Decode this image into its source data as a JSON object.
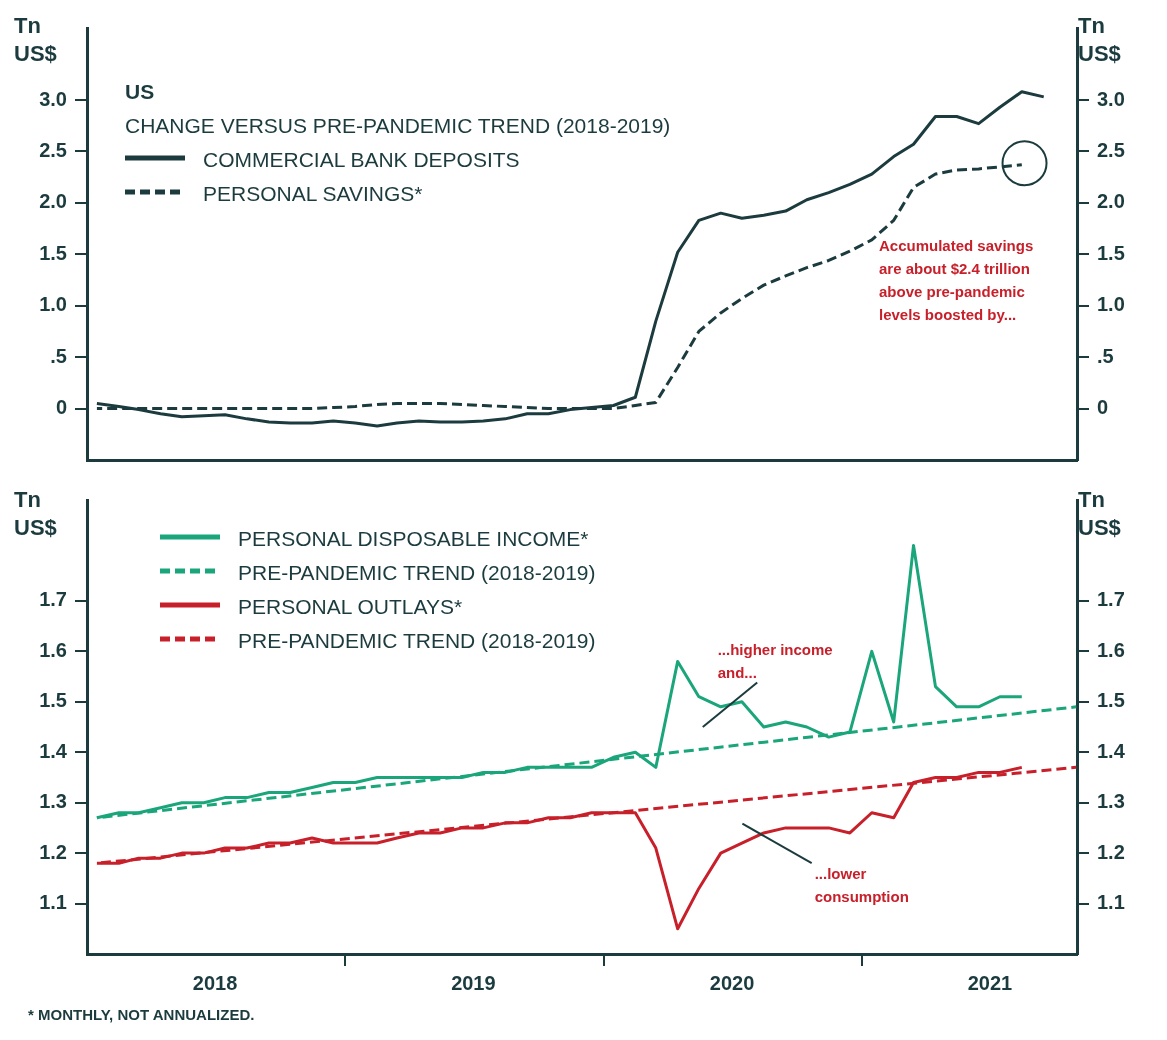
{
  "chart_data": [
    {
      "type": "line",
      "title": "US",
      "subtitle": "CHANGE VERSUS PRE-PANDEMIC TREND (2018-2019)",
      "ylabel": "Tn US$",
      "y2label": "Tn US$",
      "xlim": [
        "2018-01-01",
        "2021-11-01"
      ],
      "ylim": [
        -0.5,
        3.7
      ],
      "yticks": [
        0,
        {
          "value": 0.5,
          "label": ".5"
        },
        {
          "value": 1,
          "label": "1.0"
        },
        1.5,
        {
          "value": 2,
          "label": "2.0"
        },
        2.5,
        {
          "value": 3,
          "label": "3.0"
        }
      ],
      "y2lim": [
        -0.5,
        3.7
      ],
      "y2ticks": [
        0,
        {
          "value": 0.5,
          "label": ".5"
        },
        {
          "value": 1,
          "label": "1.0"
        },
        1.5,
        {
          "value": 2,
          "label": "2.0"
        },
        2.5,
        {
          "value": 3,
          "label": "3.0"
        }
      ],
      "tick_labels": "y",
      "grid": false,
      "legend": "top left",
      "marker": "none",
      "annotations": [
        "Accumulated savings are about $2.4 trillion above pre-pandemic levels boosted by..."
      ],
      "x": [
        "2018-01-15",
        "2018-02-15",
        "2018-03-15",
        "2018-04-15",
        "2018-05-15",
        "2018-06-15",
        "2018-07-15",
        "2018-08-15",
        "2018-09-15",
        "2018-10-15",
        "2018-11-15",
        "2018-12-15",
        "2019-01-15",
        "2019-02-15",
        "2019-03-15",
        "2019-04-15",
        "2019-05-15",
        "2019-06-15",
        "2019-07-15",
        "2019-08-15",
        "2019-09-15",
        "2019-10-15",
        "2019-11-15",
        "2019-12-15",
        "2020-01-15",
        "2020-02-15",
        "2020-03-15",
        "2020-04-15",
        "2020-05-15",
        "2020-06-15",
        "2020-07-15",
        "2020-08-15",
        "2020-09-15",
        "2020-10-15",
        "2020-11-15",
        "2020-12-15",
        "2021-01-15",
        "2021-02-15",
        "2021-03-15",
        "2021-04-15",
        "2021-05-15",
        "2021-06-15",
        "2021-07-15",
        "2021-08-15",
        "2021-09-15"
      ],
      "series": [
        {
          "name": "COMMERCIAL BANK DEPOSITS",
          "type": "line",
          "line_style": "solid",
          "color": "#1c3b3f",
          "values": [
            0.05,
            0.02,
            -0.01,
            -0.05,
            -0.08,
            -0.07,
            -0.06,
            -0.1,
            -0.13,
            -0.14,
            -0.14,
            -0.12,
            -0.14,
            -0.17,
            -0.14,
            -0.12,
            -0.13,
            -0.13,
            -0.12,
            -0.1,
            -0.05,
            -0.05,
            -0.01,
            0.01,
            0.03,
            0.11,
            0.85,
            1.52,
            1.83,
            1.9,
            1.85,
            1.88,
            1.92,
            2.03,
            2.1,
            2.18,
            2.28,
            2.45,
            2.57,
            2.84,
            2.84,
            2.77,
            2.93,
            3.08,
            3.03
          ]
        },
        {
          "name": "PERSONAL SAVINGS*",
          "type": "line",
          "line_style": "dashed",
          "color": "#1c3b3f",
          "values": [
            0,
            0,
            0,
            0,
            0,
            0,
            0,
            0,
            0,
            0,
            0,
            0.01,
            0.02,
            0.04,
            0.05,
            0.05,
            0.05,
            0.04,
            0.03,
            0.02,
            0.01,
            0,
            0,
            0,
            0,
            0.03,
            0.06,
            0.4,
            0.75,
            0.93,
            1.07,
            1.2,
            1.29,
            1.37,
            1.44,
            1.53,
            1.64,
            1.83,
            2.15,
            2.28,
            2.32,
            2.33,
            2.35,
            2.37,
            null
          ]
        }
      ]
    },
    {
      "type": "line",
      "ylabel": "Tn US$",
      "y2label": "Tn US$",
      "xlim": [
        "2018-01-01",
        "2021-11-01"
      ],
      "xticks": [
        {
          "value": "2019-01-01",
          "label": null
        },
        {
          "value": "2020-01-01",
          "label": null
        },
        {
          "value": "2021-01-01",
          "label": null
        },
        {
          "value": "2018-07-01",
          "label": "2018"
        },
        {
          "value": "2019-07-01",
          "label": "2019"
        },
        {
          "value": "2020-07-01",
          "label": "2020"
        },
        {
          "value": "2021-07-01",
          "label": "2021"
        }
      ],
      "ylim": [
        1.0,
        1.9
      ],
      "yticks": [
        1.1,
        1.2,
        1.3,
        1.4,
        1.5,
        1.6,
        1.7
      ],
      "y2lim": [
        1.0,
        1.9
      ],
      "y2ticks": [
        1.1,
        1.2,
        1.3,
        1.4,
        1.5,
        1.6,
        1.7
      ],
      "grid": false,
      "legend": "top left",
      "marker": "none",
      "annotations": [
        "...higher income and...",
        "...lower consumption",
        "* MONTHLY, NOT ANNUALIZED."
      ],
      "x": [
        "2018-01-15",
        "2018-02-15",
        "2018-03-15",
        "2018-04-15",
        "2018-05-15",
        "2018-06-15",
        "2018-07-15",
        "2018-08-15",
        "2018-09-15",
        "2018-10-15",
        "2018-11-15",
        "2018-12-15",
        "2019-01-15",
        "2019-02-15",
        "2019-03-15",
        "2019-04-15",
        "2019-05-15",
        "2019-06-15",
        "2019-07-15",
        "2019-08-15",
        "2019-09-15",
        "2019-10-15",
        "2019-11-15",
        "2019-12-15",
        "2020-01-15",
        "2020-02-15",
        "2020-03-15",
        "2020-04-15",
        "2020-05-15",
        "2020-06-15",
        "2020-07-15",
        "2020-08-15",
        "2020-09-15",
        "2020-10-15",
        "2020-11-15",
        "2020-12-15",
        "2021-01-15",
        "2021-02-15",
        "2021-03-15",
        "2021-04-15",
        "2021-05-15",
        "2021-06-15",
        "2021-07-15",
        "2021-08-15"
      ],
      "series": [
        {
          "name": "PERSONAL DISPOSABLE INCOME*",
          "type": "line",
          "line_style": "solid",
          "color": "#1aa57a",
          "values": [
            1.27,
            1.28,
            1.28,
            1.29,
            1.3,
            1.3,
            1.31,
            1.31,
            1.32,
            1.32,
            1.33,
            1.34,
            1.34,
            1.35,
            1.35,
            1.35,
            1.35,
            1.35,
            1.36,
            1.36,
            1.37,
            1.37,
            1.37,
            1.37,
            1.39,
            1.4,
            1.37,
            1.58,
            1.51,
            1.49,
            1.5,
            1.45,
            1.46,
            1.45,
            1.43,
            1.44,
            1.6,
            1.46,
            1.81,
            1.53,
            1.49,
            1.49,
            1.51,
            1.51
          ]
        },
        {
          "name": "PRE-PANDEMIC TREND (2018-2019)",
          "type": "line",
          "line_style": "dashed",
          "color": "#1aa57a",
          "x": [
            "2018-01-15",
            "2021-10-31"
          ],
          "values": [
            1.27,
            1.49
          ]
        },
        {
          "name": "PERSONAL OUTLAYS*",
          "type": "line",
          "line_style": "solid",
          "color": "#c8202a",
          "values": [
            1.18,
            1.18,
            1.19,
            1.19,
            1.2,
            1.2,
            1.21,
            1.21,
            1.22,
            1.22,
            1.23,
            1.22,
            1.22,
            1.22,
            1.23,
            1.24,
            1.24,
            1.25,
            1.25,
            1.26,
            1.26,
            1.27,
            1.27,
            1.28,
            1.28,
            1.28,
            1.21,
            1.05,
            1.13,
            1.2,
            1.22,
            1.24,
            1.25,
            1.25,
            1.25,
            1.24,
            1.28,
            1.27,
            1.34,
            1.35,
            1.35,
            1.36,
            1.36,
            1.37
          ]
        },
        {
          "name": "PRE-PANDEMIC TREND (2018-2019)",
          "type": "line",
          "line_style": "dashed",
          "color": "#c8202a",
          "x": [
            "2018-01-15",
            "2021-10-31"
          ],
          "values": [
            1.18,
            1.37
          ]
        }
      ]
    }
  ]
}
